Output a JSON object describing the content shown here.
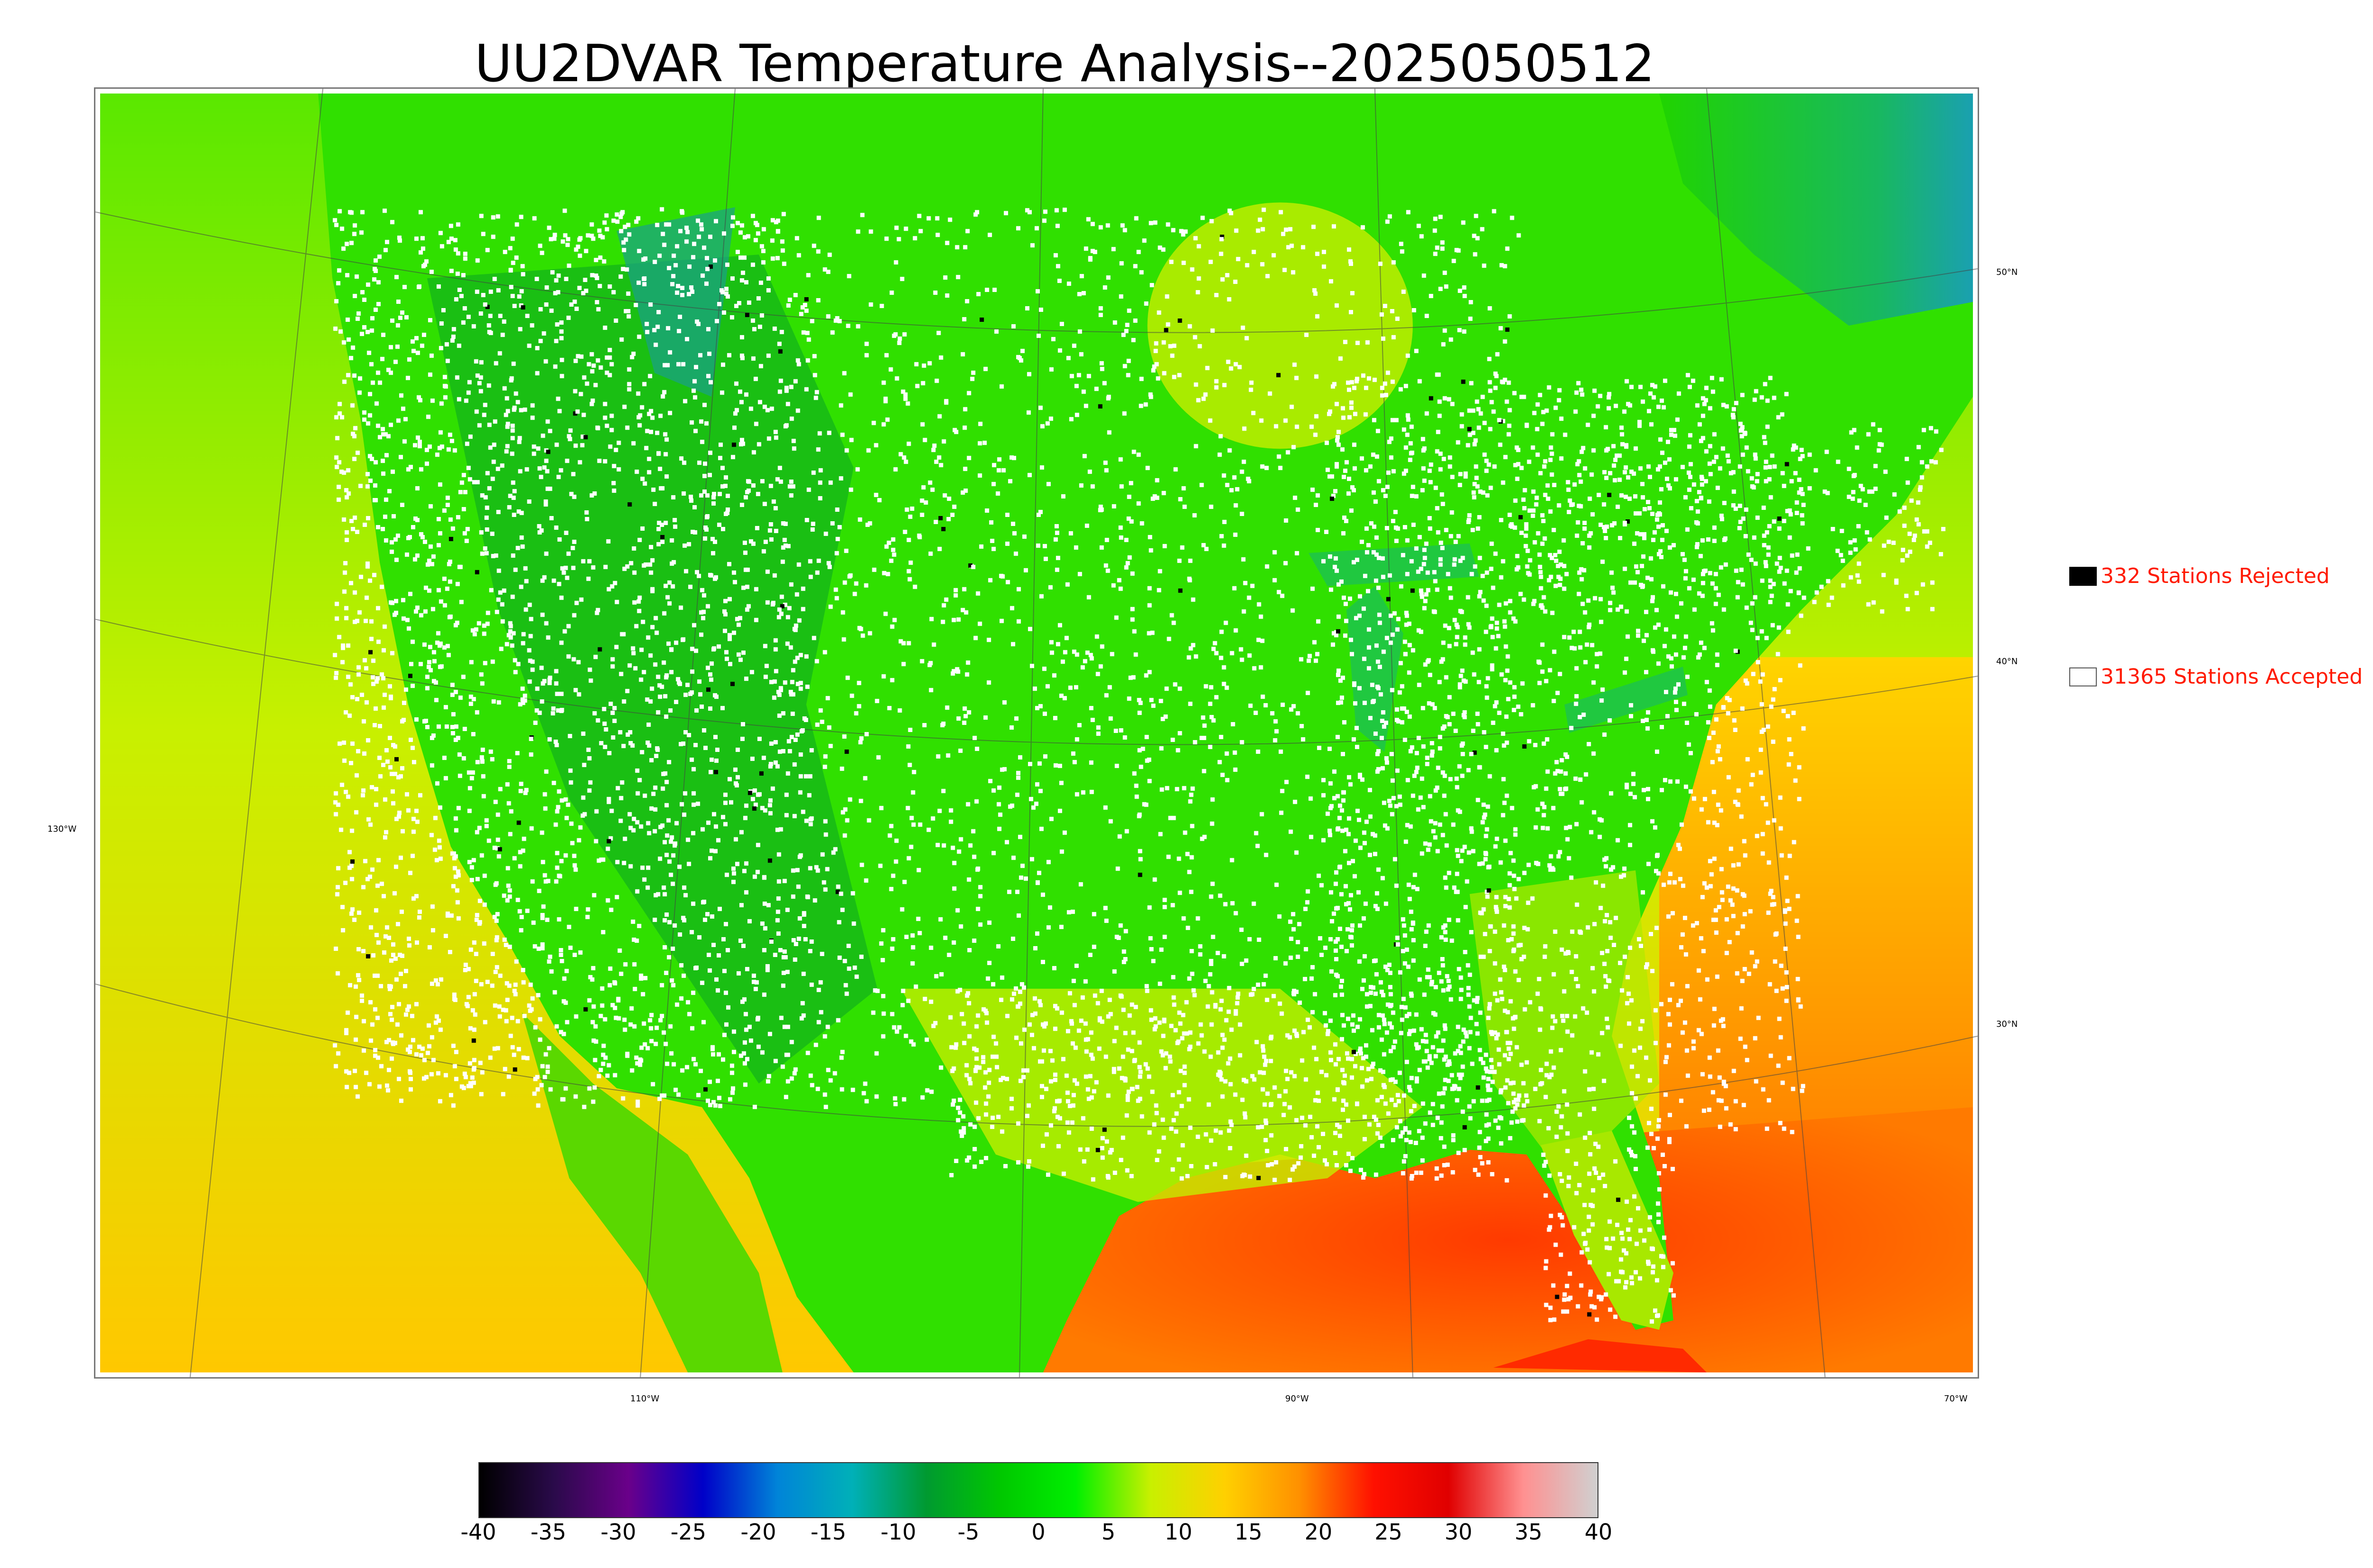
{
  "title": "UU2DVAR Temperature Analysis--2025050512",
  "legend": {
    "rejected": {
      "label": "332 Stations Rejected",
      "swatch_color": "#000000"
    },
    "accepted": {
      "label": "31365 Stations Accepted",
      "swatch_color": "#ffffff"
    },
    "text_color": "#ff1a00"
  },
  "map": {
    "latitude_labels": [
      "50°N",
      "40°N",
      "30°N"
    ],
    "longitude_labels": [
      "130°W",
      "110°W",
      "90°W",
      "70°W"
    ],
    "field_colors": {
      "ocean_gulf": "#ff4a00",
      "ocean_atlantic_warm": "#ff9a00",
      "ocean_pacific": "#d6f000",
      "land": "#2ee400",
      "mountains": "#12a812",
      "north_water": "#20b0a8"
    },
    "station_accepted_color": "#ffffff",
    "station_rejected_color": "#000000"
  },
  "colorbar": {
    "tick_labels": [
      "-40",
      "-35",
      "-30",
      "-25",
      "-20",
      "-15",
      "-10",
      "-5",
      "0",
      "5",
      "10",
      "15",
      "20",
      "25",
      "30",
      "35",
      "40"
    ],
    "range": [
      -40,
      40
    ],
    "colors": [
      "#000000",
      "#2a0a4a",
      "#6a008a",
      "#0000c8",
      "#0084d8",
      "#00b0b8",
      "#009a30",
      "#00c800",
      "#00f000",
      "#c8f000",
      "#ffd000",
      "#ff9000",
      "#ff1000",
      "#e00000",
      "#ff9090",
      "#d0d0d0"
    ]
  }
}
